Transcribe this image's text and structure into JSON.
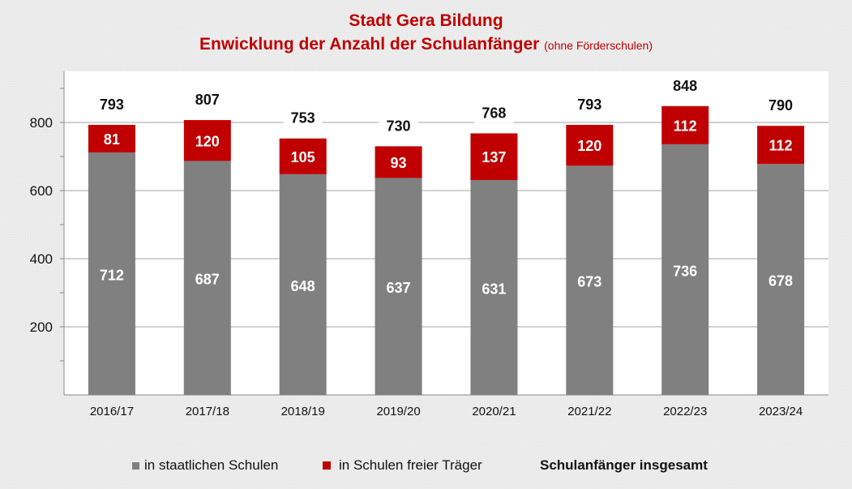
{
  "chart_data": {
    "type": "bar",
    "stacked": true,
    "title": "Stadt Gera Bildung",
    "subtitle": "Enwicklung der Anzahl der Schulanfänger",
    "subtitle_note": "(ohne Förderschulen)",
    "xlabel": "",
    "ylabel": "",
    "ylim": [
      0,
      950
    ],
    "yticks": [
      200,
      400,
      600,
      800
    ],
    "ytick_labels": [
      "200",
      "400",
      "600",
      "800"
    ],
    "grid": true,
    "categories": [
      "2016/17",
      "2017/18",
      "2018/19",
      "2019/20",
      "2020/21",
      "2021/22",
      "2022/23",
      "2023/24"
    ],
    "series": [
      {
        "name": "in staatlichen Schulen",
        "color": "#808080",
        "values": [
          712,
          687,
          648,
          637,
          631,
          673,
          736,
          678
        ]
      },
      {
        "name": "in Schulen freier Träger",
        "color": "#c00000",
        "values": [
          81,
          120,
          105,
          93,
          137,
          120,
          112,
          112
        ]
      }
    ],
    "totals": {
      "name": "Schulanfänger insgesamt",
      "values": [
        793,
        807,
        753,
        730,
        768,
        793,
        848,
        790
      ]
    },
    "legend_position": "bottom"
  }
}
